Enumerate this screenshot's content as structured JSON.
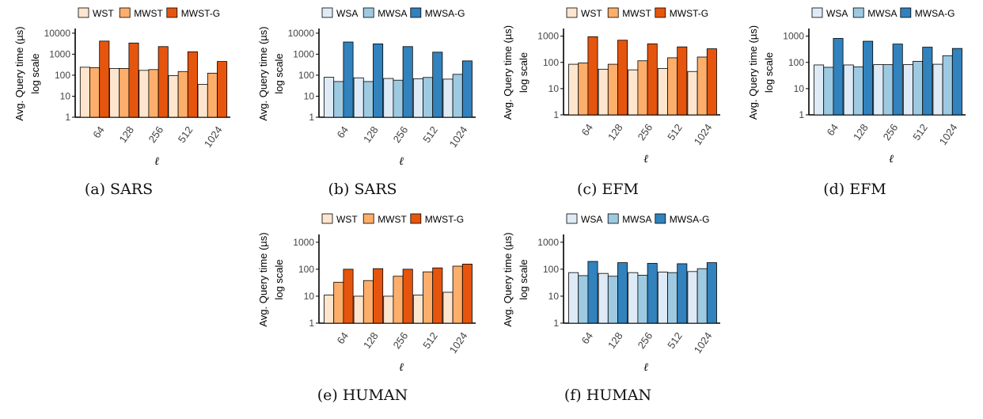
{
  "panels": [
    {
      "caption": "(a) SARS",
      "chart_data": {
        "type": "bar",
        "yscale": "log",
        "categories": [
          "64",
          "128",
          "256",
          "512",
          "1024"
        ],
        "series": [
          {
            "name": "WST",
            "color": "#fee6ce",
            "values": [
              240,
              210,
              170,
              95,
              37
            ]
          },
          {
            "name": "MWST",
            "color": "#fdae6b",
            "values": [
              230,
              210,
              185,
              150,
              125
            ]
          },
          {
            "name": "MWST-G",
            "color": "#e6550d",
            "values": [
              4200,
              3400,
              2300,
              1300,
              450
            ]
          }
        ],
        "ylabel": "Avg. Query time (µs)",
        "ylabel2": "log scale",
        "xlabel": "ℓ",
        "yticks": [
          1,
          10,
          100,
          1000,
          10000
        ],
        "ytick_labels": [
          "1",
          "10",
          "100",
          "1000",
          "10000"
        ],
        "ylim": [
          1,
          14000
        ],
        "legend_position": "top",
        "grid": false
      }
    },
    {
      "caption": "(b) SARS",
      "chart_data": {
        "type": "bar",
        "yscale": "log",
        "categories": [
          "64",
          "128",
          "256",
          "512",
          "1024"
        ],
        "series": [
          {
            "name": "WSA",
            "color": "#deebf7",
            "values": [
              80,
              75,
              70,
              68,
              65
            ]
          },
          {
            "name": "MWSA",
            "color": "#9ecae1",
            "values": [
              50,
              50,
              58,
              78,
              110
            ]
          },
          {
            "name": "MWSA-G",
            "color": "#3182bd",
            "values": [
              3800,
              3100,
              2300,
              1250,
              480
            ]
          }
        ],
        "ylabel": "Avg. Query time (µs)",
        "ylabel2": "log scale",
        "xlabel": "ℓ",
        "yticks": [
          1,
          10,
          100,
          1000,
          10000
        ],
        "ytick_labels": [
          "1",
          "10",
          "100",
          "1000",
          "10000"
        ],
        "ylim": [
          1,
          14000
        ],
        "legend_position": "top",
        "grid": false
      }
    },
    {
      "caption": "(c) EFM",
      "chart_data": {
        "type": "bar",
        "yscale": "log",
        "categories": [
          "64",
          "128",
          "256",
          "512",
          "1024"
        ],
        "series": [
          {
            "name": "WST",
            "color": "#fee6ce",
            "values": [
              85,
              55,
              52,
              58,
              45
            ]
          },
          {
            "name": "MWST",
            "color": "#fdae6b",
            "values": [
              95,
              85,
              115,
              150,
              160
            ]
          },
          {
            "name": "MWST-G",
            "color": "#e6550d",
            "values": [
              950,
              700,
              510,
              390,
              330
            ]
          }
        ],
        "ylabel": "Avg. Query time (µs)",
        "ylabel2": "log scale",
        "xlabel": "ℓ",
        "yticks": [
          1,
          10,
          100,
          1000
        ],
        "ytick_labels": [
          "1",
          "10",
          "100",
          "1000"
        ],
        "ylim": [
          1,
          1700
        ],
        "legend_position": "top",
        "grid": false
      }
    },
    {
      "caption": "(d) EFM",
      "chart_data": {
        "type": "bar",
        "yscale": "log",
        "categories": [
          "64",
          "128",
          "256",
          "512",
          "1024"
        ],
        "series": [
          {
            "name": "WSA",
            "color": "#deebf7",
            "values": [
              80,
              80,
              82,
              82,
              85
            ]
          },
          {
            "name": "MWSA",
            "color": "#9ecae1",
            "values": [
              65,
              68,
              82,
              110,
              180
            ]
          },
          {
            "name": "MWSA-G",
            "color": "#3182bd",
            "values": [
              820,
              640,
              500,
              380,
              340
            ]
          }
        ],
        "ylabel": "Avg. Query time (µs)",
        "ylabel2": "log scale",
        "xlabel": "ℓ",
        "yticks": [
          1,
          10,
          100,
          1000
        ],
        "ytick_labels": [
          "1",
          "10",
          "100",
          "1000"
        ],
        "ylim": [
          1,
          1700
        ],
        "legend_position": "top",
        "grid": false
      }
    },
    {
      "caption": "(e) HUMAN",
      "chart_data": {
        "type": "bar",
        "yscale": "log",
        "categories": [
          "64",
          "128",
          "256",
          "512",
          "1024"
        ],
        "series": [
          {
            "name": "WST",
            "color": "#fee6ce",
            "values": [
              11,
              10,
              10,
              11,
              14
            ]
          },
          {
            "name": "MWST",
            "color": "#fdae6b",
            "values": [
              33,
              38,
              55,
              80,
              130
            ]
          },
          {
            "name": "MWST-G",
            "color": "#e6550d",
            "values": [
              100,
              105,
              100,
              112,
              155
            ]
          }
        ],
        "ylabel": "Avg. Query time (µs)",
        "ylabel2": "log scale",
        "xlabel": "ℓ",
        "yticks": [
          1,
          10,
          100,
          1000
        ],
        "ytick_labels": [
          "1",
          "10",
          "100",
          "1000"
        ],
        "ylim": [
          1,
          1700
        ],
        "legend_position": "top",
        "grid": false
      }
    },
    {
      "caption": "(f) HUMAN",
      "chart_data": {
        "type": "bar",
        "yscale": "log",
        "categories": [
          "64",
          "128",
          "256",
          "512",
          "1024"
        ],
        "series": [
          {
            "name": "WSA",
            "color": "#deebf7",
            "values": [
              75,
              70,
              75,
              78,
              82
            ]
          },
          {
            "name": "MWSA",
            "color": "#9ecae1",
            "values": [
              58,
              55,
              60,
              75,
              105
            ]
          },
          {
            "name": "MWSA-G",
            "color": "#3182bd",
            "values": [
              195,
              175,
              165,
              160,
              175
            ]
          }
        ],
        "ylabel": "Avg. Query time (µs)",
        "ylabel2": "log scale",
        "xlabel": "ℓ",
        "yticks": [
          1,
          10,
          100,
          1000
        ],
        "ytick_labels": [
          "1",
          "10",
          "100",
          "1000"
        ],
        "ylim": [
          1,
          1700
        ],
        "legend_position": "top",
        "grid": false
      }
    }
  ]
}
